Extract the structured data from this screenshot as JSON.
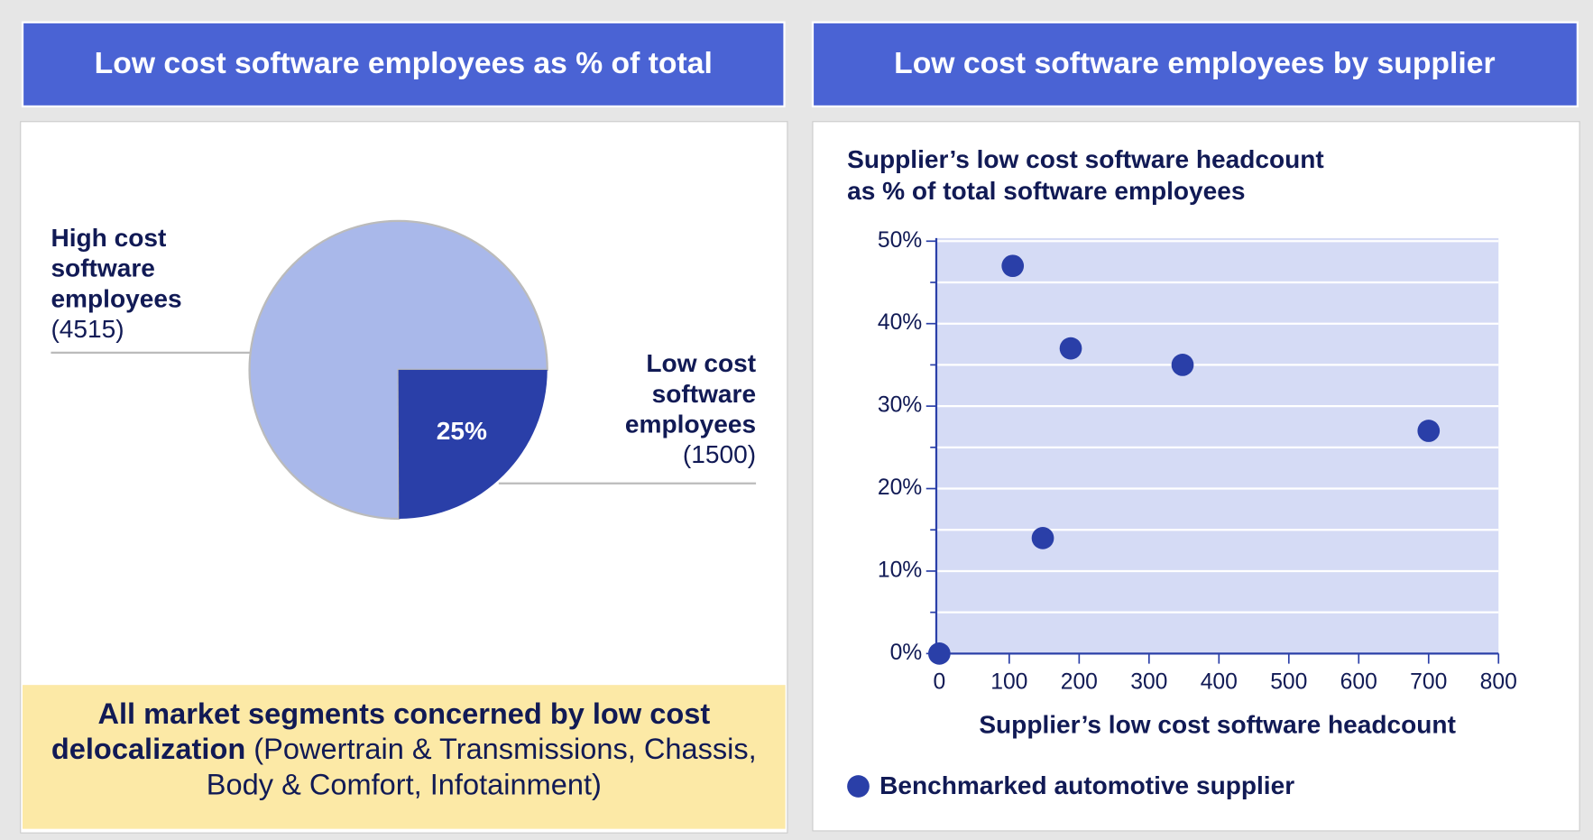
{
  "chart_data": [
    {
      "type": "pie",
      "title": "Low cost software employees as % of total",
      "categories": [
        "High cost software employees",
        "Low cost software employees"
      ],
      "values": [
        4515,
        1500
      ],
      "value_labels": [
        "(4515)",
        "(1500)"
      ],
      "percent_labels": [
        null,
        "25%"
      ],
      "colors": [
        "#a9b8ea",
        "#2a3fa8"
      ],
      "note": {
        "bold": "All market segments concerned by low cost delocalization",
        "text": " (Powertrain & Transmissions, Chassis, Body & Comfort, Infotainment)"
      }
    },
    {
      "type": "scatter",
      "title": "Low cost software employees by supplier",
      "ylabel": [
        "Supplier’s low cost software headcount",
        "as % of total software employees"
      ],
      "xlabel": "Supplier’s low cost software headcount",
      "series": [
        {
          "name": "Benchmarked automotive supplier",
          "color": "#2a3fa8",
          "x": [
            0,
            105,
            148,
            188,
            348,
            700
          ],
          "values": [
            0,
            47,
            14,
            37,
            35,
            27
          ]
        }
      ],
      "xlim": [
        0,
        800
      ],
      "xticks": [
        0,
        100,
        200,
        300,
        400,
        500,
        600,
        700,
        800
      ],
      "ylim": [
        0,
        50
      ],
      "yticks": [
        {
          "value": 0,
          "label": "0%"
        },
        {
          "value": 10,
          "label": "10%"
        },
        {
          "value": 20,
          "label": "20%"
        },
        {
          "value": 30,
          "label": "30%"
        },
        {
          "value": 40,
          "label": "40%"
        },
        {
          "value": 50,
          "label": "50%"
        }
      ],
      "minor_yticks": [
        5,
        15,
        25,
        35,
        45
      ],
      "grid": true
    }
  ]
}
